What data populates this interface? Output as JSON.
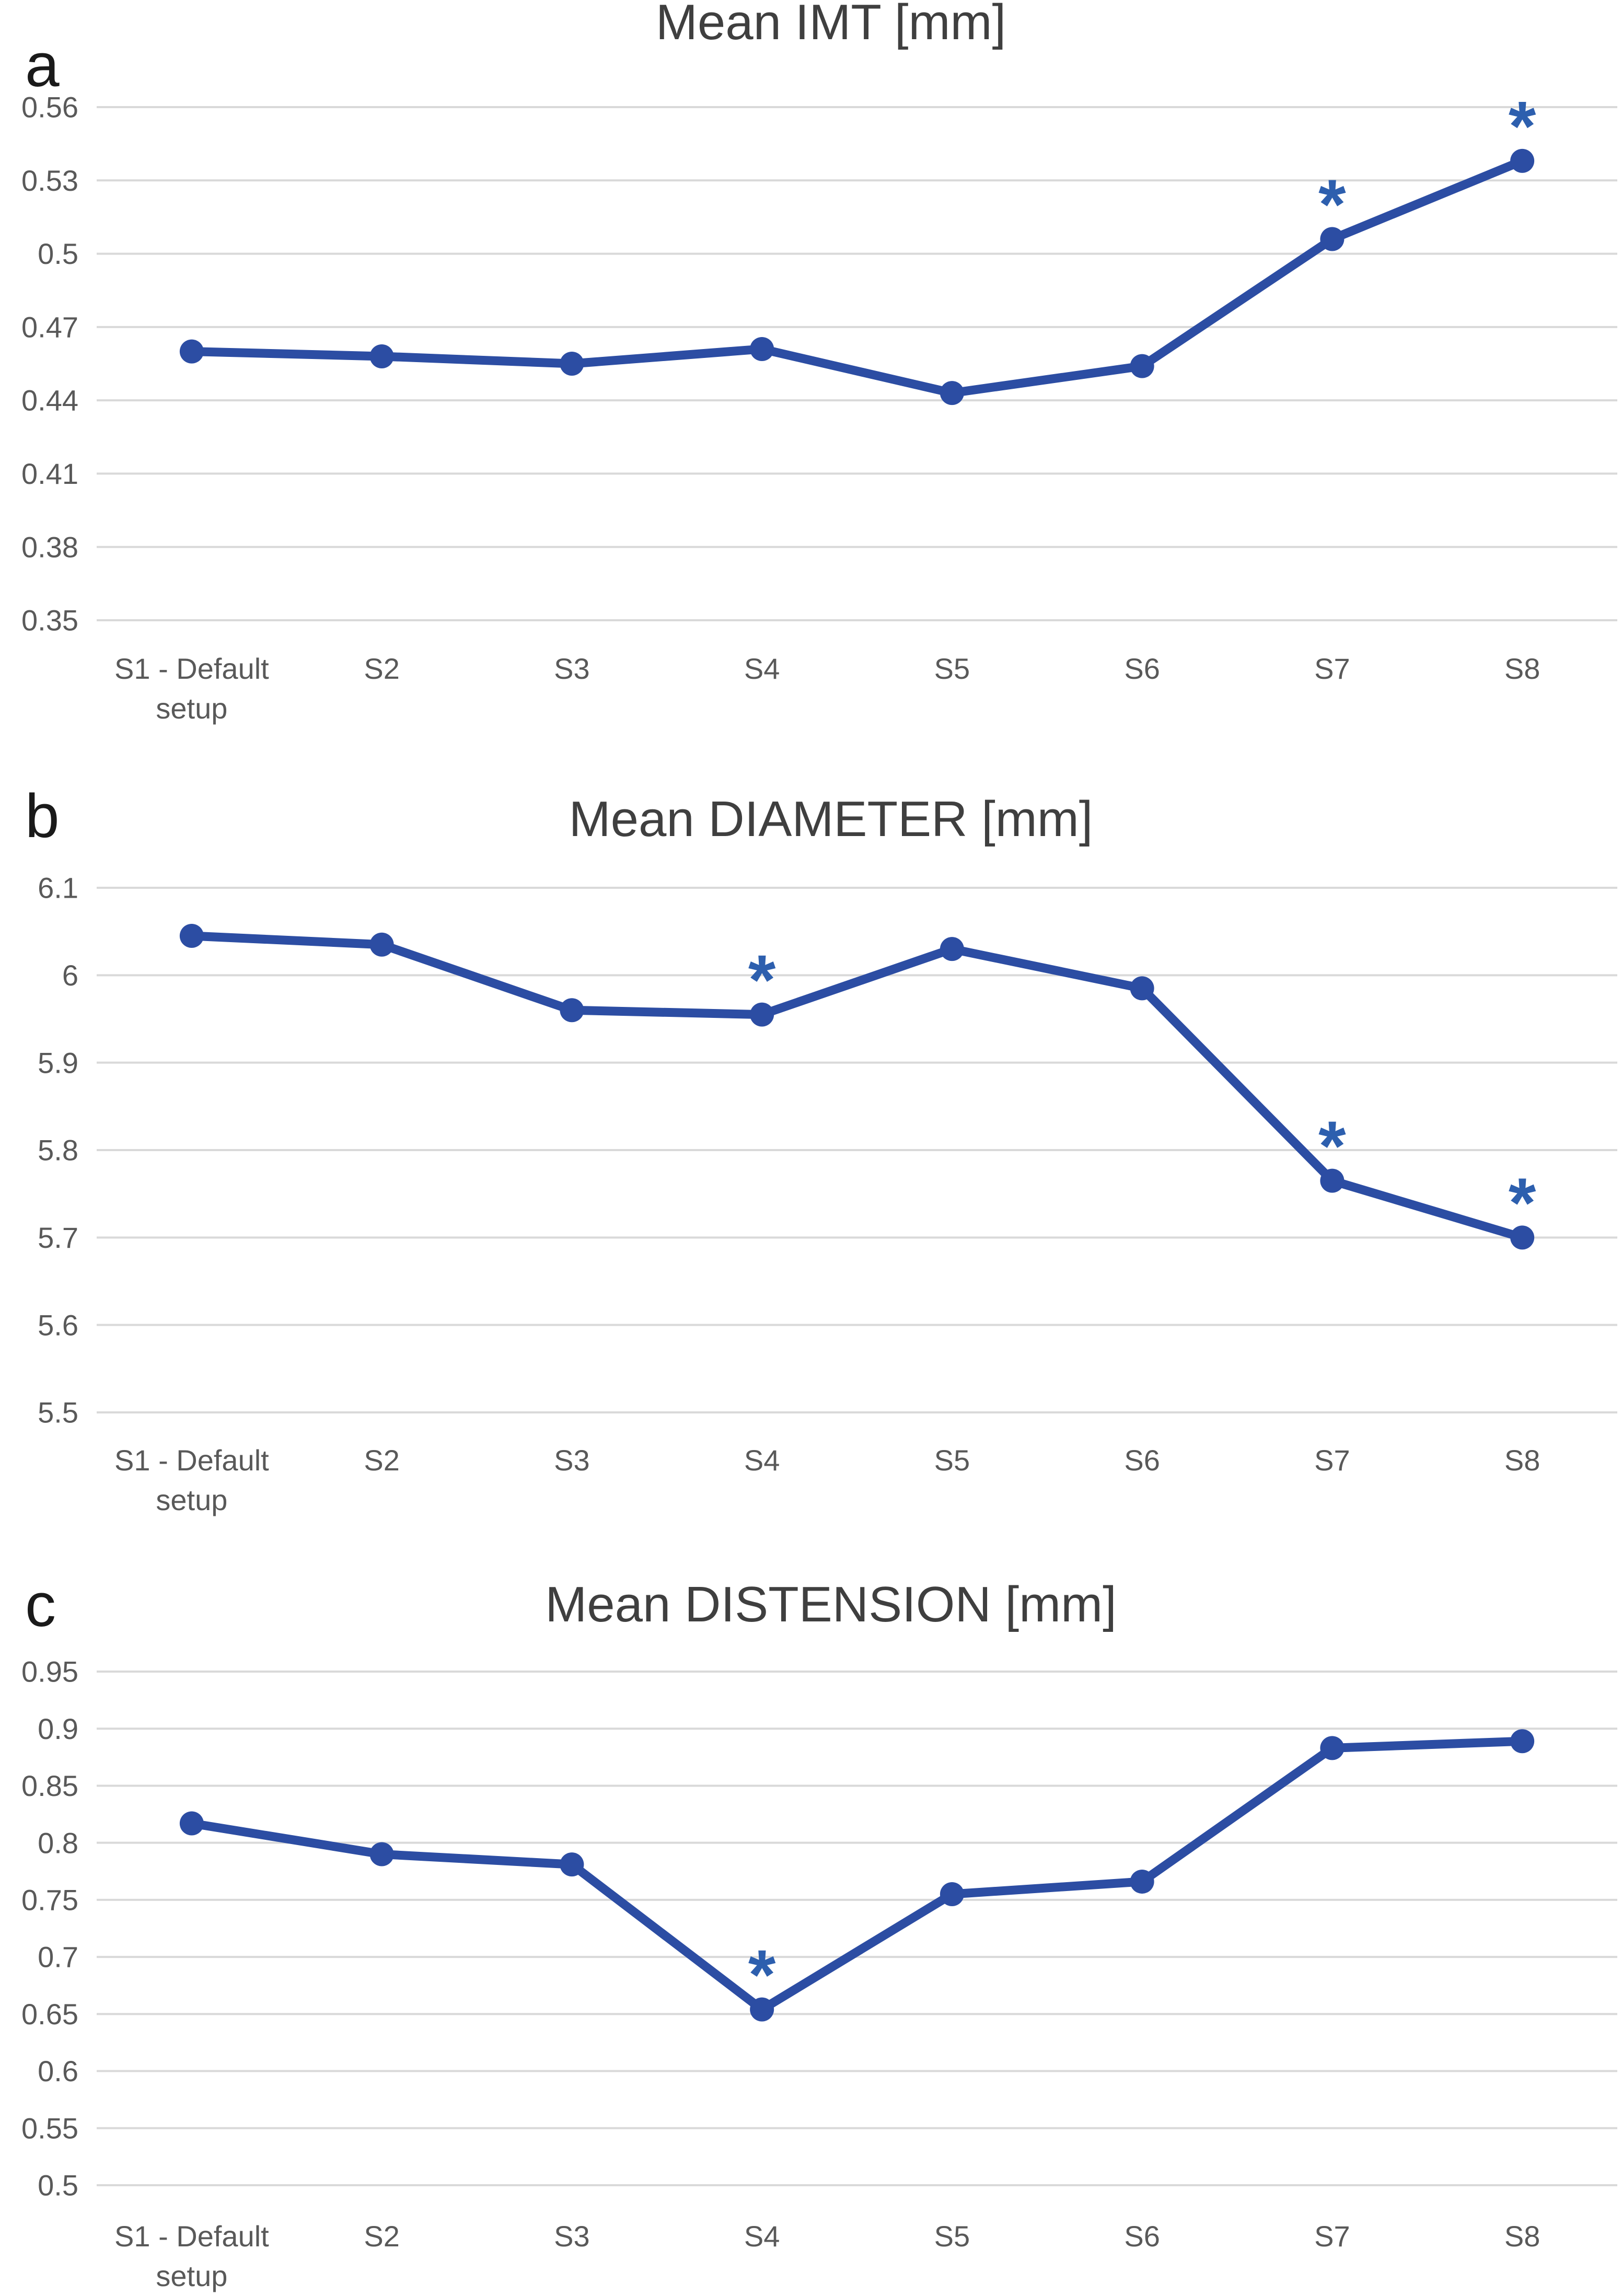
{
  "colors": {
    "series_line": "#2c4da3",
    "marker": "#2c4da3",
    "asterisk": "#2d5fae",
    "gridline": "#d9d9d9",
    "title_text": "#3f3f3f",
    "tick_text": "#595959",
    "panel_letter": "#1a1a1a",
    "background": "#ffffff"
  },
  "chart_data": [
    {
      "type": "line",
      "panel_label": "a",
      "title": "Mean IMT [mm]",
      "categories": [
        "S1 - Default setup",
        "S2",
        "S3",
        "S4",
        "S5",
        "S6",
        "S7",
        "S8"
      ],
      "category_lines": [
        [
          "S1 - Default",
          "setup"
        ],
        [
          "S2"
        ],
        [
          "S3"
        ],
        [
          "S4"
        ],
        [
          "S5"
        ],
        [
          "S6"
        ],
        [
          "S7"
        ],
        [
          "S8"
        ]
      ],
      "values": [
        0.46,
        0.458,
        0.455,
        0.461,
        0.443,
        0.454,
        0.506,
        0.538
      ],
      "significant_indices": [
        6,
        7
      ],
      "significance_marker": "*",
      "ylim": [
        0.35,
        0.56
      ],
      "yticks": [
        {
          "label": "0.56",
          "value": 0.56
        },
        {
          "label": "0.53",
          "value": 0.53
        },
        {
          "label": "0.5",
          "value": 0.5
        },
        {
          "label": "0.47",
          "value": 0.47
        },
        {
          "label": "0.44",
          "value": 0.44
        },
        {
          "label": "0.41",
          "value": 0.41
        },
        {
          "label": "0.38",
          "value": 0.38
        },
        {
          "label": "0.35",
          "value": 0.35
        }
      ],
      "grid": true,
      "legend": "none",
      "xlabel": "",
      "ylabel": ""
    },
    {
      "type": "line",
      "panel_label": "b",
      "title": "Mean DIAMETER [mm]",
      "categories": [
        "S1 - Default setup",
        "S2",
        "S3",
        "S4",
        "S5",
        "S6",
        "S7",
        "S8"
      ],
      "category_lines": [
        [
          "S1 - Default",
          "setup"
        ],
        [
          "S2"
        ],
        [
          "S3"
        ],
        [
          "S4"
        ],
        [
          "S5"
        ],
        [
          "S6"
        ],
        [
          "S7"
        ],
        [
          "S8"
        ]
      ],
      "values": [
        6.045,
        6.035,
        5.96,
        5.955,
        6.03,
        5.985,
        5.765,
        5.7
      ],
      "significant_indices": [
        3,
        6,
        7
      ],
      "significance_marker": "*",
      "ylim": [
        5.5,
        6.1
      ],
      "yticks": [
        {
          "label": "6.1",
          "value": 6.1
        },
        {
          "label": "6",
          "value": 6.0
        },
        {
          "label": "5.9",
          "value": 5.9
        },
        {
          "label": "5.8",
          "value": 5.8
        },
        {
          "label": "5.7",
          "value": 5.7
        },
        {
          "label": "5.6",
          "value": 5.6
        },
        {
          "label": "5.5",
          "value": 5.5
        }
      ],
      "grid": true,
      "legend": "none",
      "xlabel": "",
      "ylabel": ""
    },
    {
      "type": "line",
      "panel_label": "c",
      "title": "Mean DISTENSION [mm]",
      "categories": [
        "S1 - Default setup",
        "S2",
        "S3",
        "S4",
        "S5",
        "S6",
        "S7",
        "S8"
      ],
      "category_lines": [
        [
          "S1 - Default",
          "setup"
        ],
        [
          "S2"
        ],
        [
          "S3"
        ],
        [
          "S4"
        ],
        [
          "S5"
        ],
        [
          "S6"
        ],
        [
          "S7"
        ],
        [
          "S8"
        ]
      ],
      "values": [
        0.817,
        0.79,
        0.781,
        0.654,
        0.755,
        0.766,
        0.883,
        0.889
      ],
      "significant_indices": [
        3
      ],
      "significance_marker": "*",
      "ylim": [
        0.5,
        0.95
      ],
      "yticks": [
        {
          "label": "0.95",
          "value": 0.95
        },
        {
          "label": "0.9",
          "value": 0.9
        },
        {
          "label": "0.85",
          "value": 0.85
        },
        {
          "label": "0.8",
          "value": 0.8
        },
        {
          "label": "0.75",
          "value": 0.75
        },
        {
          "label": "0.7",
          "value": 0.7
        },
        {
          "label": "0.65",
          "value": 0.65
        },
        {
          "label": "0.6",
          "value": 0.6
        },
        {
          "label": "0.55",
          "value": 0.55
        },
        {
          "label": "0.5",
          "value": 0.5
        }
      ],
      "grid": true,
      "legend": "none",
      "xlabel": "",
      "ylabel": ""
    }
  ]
}
